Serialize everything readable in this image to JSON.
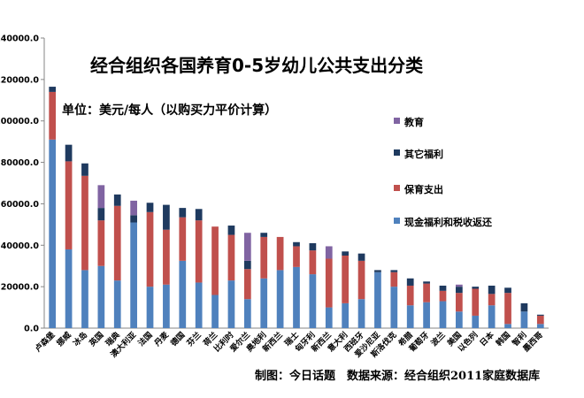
{
  "title": "经合组织各国养育0-5岁幼儿公共支出分类",
  "unit_note": "单位：美元/每人（以购买力平价计算）",
  "footer": "制图：今日话题　数据来源：经合组织2011家庭数据库",
  "colors": {
    "cash": "#4f81bd",
    "care": "#c0504d",
    "other": "#1f3a5f",
    "edu": "#8064a2"
  },
  "chart_data": {
    "type": "bar",
    "stacked": true,
    "ylim": [
      0,
      140000
    ],
    "yticks": [
      "0.0",
      "20000.0",
      "40000.0",
      "60000.0",
      "80000.0",
      "100000.0",
      "120000.0",
      "140000.0"
    ],
    "ytick_values": [
      0,
      20000,
      40000,
      60000,
      80000,
      100000,
      120000,
      140000
    ],
    "categories": [
      "卢森堡",
      "挪威",
      "冰岛",
      "英国",
      "瑞典",
      "澳大利亚",
      "法国",
      "丹麦",
      "德国",
      "芬兰",
      "荷兰",
      "比利时",
      "爱尔兰",
      "奥地利",
      "新西兰",
      "瑞士",
      "匈牙利",
      "新西兰",
      "意大利",
      "西班牙",
      "爱沙尼亚",
      "斯洛伐克",
      "希腊",
      "葡萄牙",
      "波兰",
      "美国",
      "以色列",
      "日本",
      "韩国",
      "智利",
      "墨西哥"
    ],
    "legend_location": "right",
    "series": [
      {
        "name": "现金福利和税收返还",
        "key": "cash",
        "values": [
          91000,
          38000,
          28000,
          30000,
          23000,
          51000,
          20000,
          21000,
          32500,
          22000,
          16000,
          23000,
          14000,
          24000,
          28000,
          29500,
          26000,
          10000,
          12000,
          14000,
          27000,
          20000,
          11000,
          12500,
          13000,
          8000,
          6000,
          11000,
          2000,
          8000,
          2000
        ]
      },
      {
        "name": "保育支出",
        "key": "care",
        "values": [
          23000,
          42500,
          45500,
          22000,
          36000,
          0,
          36000,
          26500,
          21000,
          30000,
          33000,
          22000,
          14500,
          20000,
          16000,
          10000,
          11500,
          23500,
          23000,
          18500,
          0,
          7000,
          9500,
          9000,
          5000,
          9000,
          13000,
          5500,
          15000,
          0,
          4000
        ]
      },
      {
        "name": "其它福利",
        "key": "other",
        "values": [
          2500,
          8000,
          6000,
          6000,
          5500,
          3500,
          4500,
          12000,
          4500,
          5500,
          0,
          4500,
          4000,
          2000,
          0,
          2000,
          3500,
          0,
          2000,
          3500,
          1000,
          1000,
          3500,
          1000,
          2500,
          3000,
          1000,
          4000,
          2500,
          4000,
          500
        ]
      },
      {
        "name": "教育",
        "key": "edu",
        "values": [
          0,
          0,
          0,
          11000,
          0,
          7000,
          0,
          0,
          0,
          0,
          0,
          0,
          13500,
          0,
          0,
          0,
          0,
          6000,
          0,
          0,
          0,
          0,
          0,
          0,
          0,
          1000,
          0,
          0,
          0,
          0,
          0
        ]
      }
    ],
    "legend_order": [
      "edu",
      "other",
      "care",
      "cash"
    ]
  }
}
